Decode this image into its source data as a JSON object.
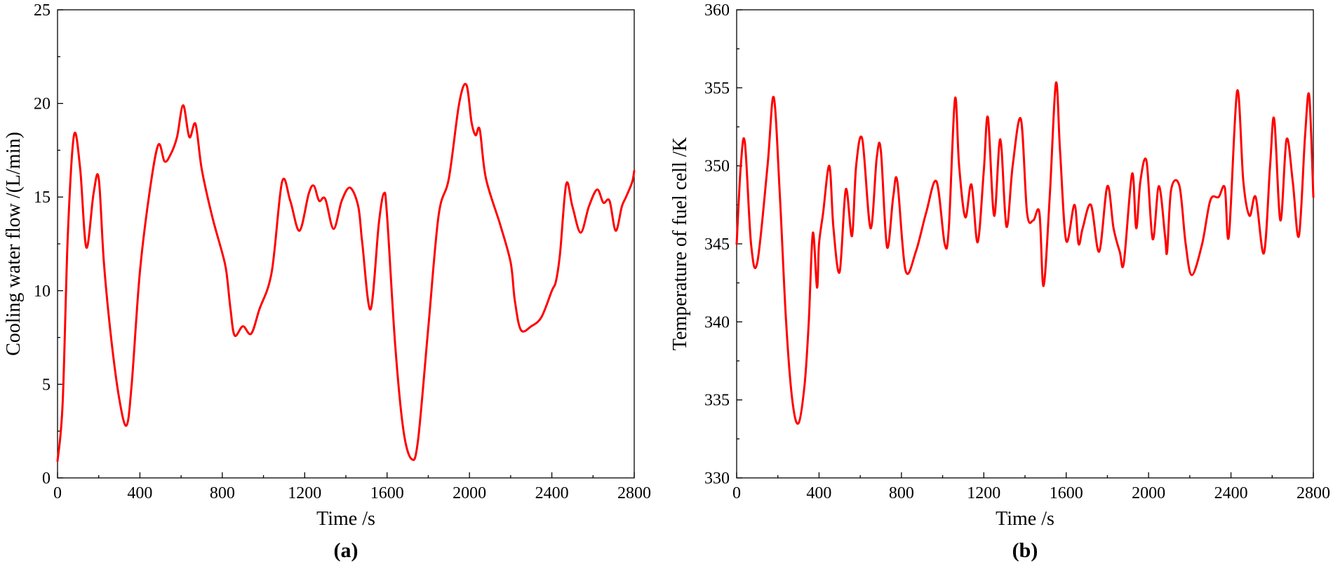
{
  "chart_data": [
    {
      "type": "line",
      "panel_label": "(a)",
      "title": "",
      "xlabel": "Time /s",
      "ylabel": "Cooling water flow /(L/min)",
      "xlim": [
        0,
        2800
      ],
      "ylim": [
        0,
        25
      ],
      "xticks": [
        0,
        400,
        800,
        1200,
        1600,
        2000,
        2400,
        2800
      ],
      "yticks": [
        0,
        5,
        10,
        15,
        20,
        25
      ],
      "color": "#ff0000",
      "series": [
        {
          "name": "Cooling water flow",
          "x": [
            0,
            25,
            50,
            80,
            110,
            140,
            175,
            200,
            225,
            260,
            300,
            335,
            360,
            400,
            450,
            490,
            520,
            550,
            580,
            610,
            640,
            670,
            700,
            750,
            800,
            820,
            840,
            860,
            900,
            940,
            980,
            1040,
            1090,
            1130,
            1175,
            1220,
            1245,
            1270,
            1300,
            1340,
            1380,
            1420,
            1460,
            1480,
            1520,
            1560,
            1585,
            1600,
            1640,
            1680,
            1720,
            1750,
            1800,
            1850,
            1900,
            1950,
            1985,
            2010,
            2030,
            2050,
            2080,
            2150,
            2200,
            2220,
            2250,
            2300,
            2350,
            2400,
            2420,
            2440,
            2470,
            2500,
            2540,
            2580,
            2620,
            2650,
            2680,
            2710,
            2740,
            2760,
            2790,
            2800
          ],
          "values": [
            0.9,
            4,
            13,
            18.3,
            16.5,
            12.3,
            15.2,
            16,
            11.5,
            7.5,
            4.2,
            2.8,
            5,
            11,
            15.5,
            17.8,
            16.9,
            17.3,
            18.2,
            19.9,
            18.2,
            18.9,
            16.5,
            14,
            12,
            11,
            9,
            7.6,
            8.1,
            7.7,
            9,
            11,
            15.8,
            14.8,
            13.2,
            15.2,
            15.6,
            14.8,
            14.9,
            13.3,
            14.8,
            15.5,
            14.5,
            12.5,
            9,
            13.6,
            15.2,
            14,
            7,
            2.5,
            1,
            2,
            8,
            14,
            16,
            20,
            21,
            19,
            18.3,
            18.6,
            16,
            13.5,
            11.5,
            9.5,
            7.9,
            8.1,
            8.6,
            10,
            10.5,
            12,
            15.7,
            14.5,
            13.1,
            14.5,
            15.4,
            14.7,
            14.8,
            13.2,
            14.5,
            15,
            15.8,
            16.4
          ]
        }
      ]
    },
    {
      "type": "line",
      "panel_label": "(b)",
      "title": "",
      "xlabel": "Time /s",
      "ylabel": "Temperature of fuel cell /K",
      "xlim": [
        0,
        2800
      ],
      "ylim": [
        330,
        360
      ],
      "xticks": [
        0,
        400,
        800,
        1200,
        1600,
        2000,
        2400,
        2800
      ],
      "yticks": [
        330,
        335,
        340,
        345,
        350,
        355,
        360
      ],
      "color": "#ff0000",
      "series": [
        {
          "name": "Temperature of fuel cell",
          "x": [
            0,
            20,
            40,
            70,
            100,
            150,
            180,
            210,
            240,
            270,
            300,
            330,
            350,
            370,
            390,
            400,
            420,
            450,
            470,
            500,
            530,
            560,
            580,
            610,
            650,
            680,
            700,
            730,
            760,
            780,
            820,
            870,
            920,
            970,
            1010,
            1030,
            1060,
            1080,
            1110,
            1140,
            1170,
            1200,
            1220,
            1250,
            1280,
            1310,
            1340,
            1380,
            1410,
            1440,
            1470,
            1490,
            1520,
            1550,
            1570,
            1600,
            1640,
            1660,
            1680,
            1720,
            1760,
            1800,
            1830,
            1860,
            1880,
            1920,
            1940,
            1960,
            1990,
            2020,
            2050,
            2080,
            2090,
            2110,
            2150,
            2180,
            2210,
            2260,
            2300,
            2340,
            2370,
            2390,
            2430,
            2460,
            2490,
            2520,
            2560,
            2590,
            2610,
            2640,
            2670,
            2700,
            2730,
            2760,
            2780,
            2800
          ],
          "values": [
            345,
            350,
            351.5,
            345,
            343.8,
            350,
            354.4,
            348,
            340,
            335,
            333.5,
            336,
            340,
            345.7,
            342.2,
            345,
            347,
            350,
            346,
            343.2,
            348.5,
            345.5,
            350,
            351.7,
            346,
            350.5,
            351,
            344.8,
            348,
            349,
            343.3,
            344.5,
            347,
            349,
            345,
            346,
            354.3,
            350,
            346.7,
            348.8,
            345.1,
            349.7,
            353.1,
            346.8,
            351.7,
            346.1,
            350,
            353,
            347,
            346.5,
            347,
            342.3,
            348,
            355.3,
            351,
            345.2,
            347.5,
            345,
            346,
            347.5,
            344.5,
            348.7,
            346,
            344.5,
            343.8,
            349.5,
            346,
            349,
            350.3,
            345.3,
            348.7,
            345.5,
            344.5,
            348.5,
            348.7,
            345,
            343,
            345,
            347.8,
            348,
            348.6,
            345.5,
            354.8,
            349,
            346.8,
            348,
            344.4,
            350,
            353,
            346.5,
            351.7,
            349,
            345.5,
            352,
            354.5,
            348
          ]
        }
      ]
    }
  ]
}
